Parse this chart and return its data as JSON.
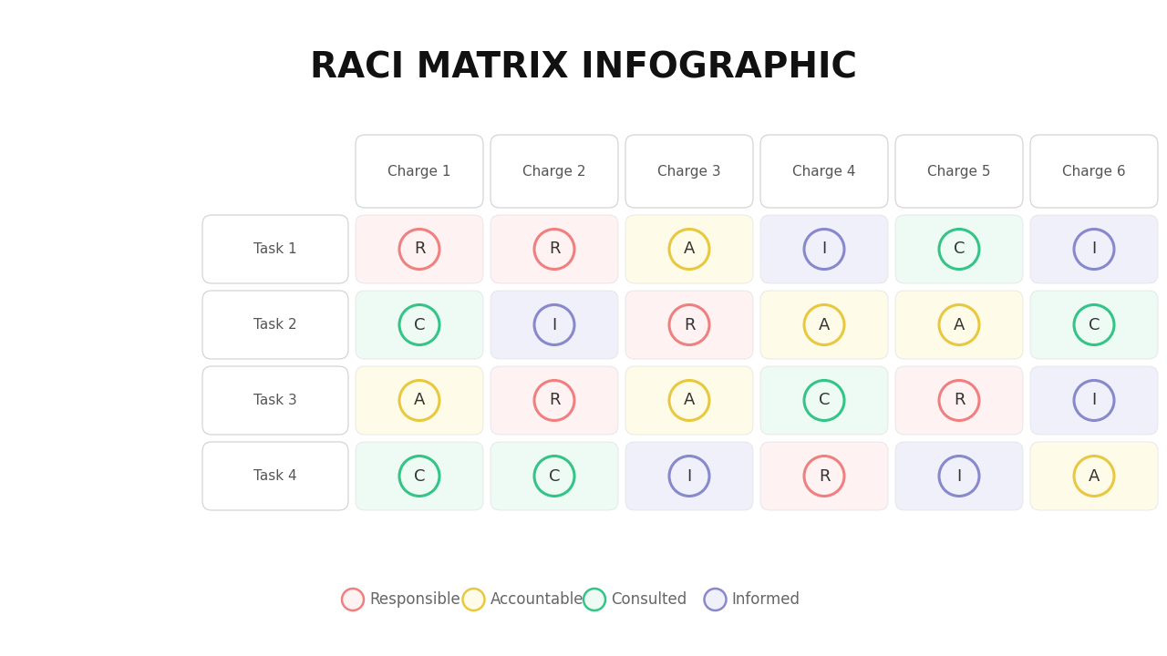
{
  "title": "RACI MATRIX INFOGRAPHIC",
  "background_color": "#ffffff",
  "charges": [
    "Charge 1",
    "Charge 2",
    "Charge 3",
    "Charge 4",
    "Charge 5",
    "Charge 6"
  ],
  "tasks": [
    "Task 1",
    "Task 2",
    "Task 3",
    "Task 4"
  ],
  "matrix": [
    [
      "R",
      "R",
      "A",
      "I",
      "C",
      "I"
    ],
    [
      "C",
      "I",
      "R",
      "A",
      "A",
      "C"
    ],
    [
      "A",
      "R",
      "A",
      "C",
      "R",
      "I"
    ],
    [
      "C",
      "C",
      "I",
      "R",
      "I",
      "A"
    ]
  ],
  "raci_colors": {
    "R": {
      "circle": "#F08080",
      "bg": "#FEF2F2"
    },
    "A": {
      "circle": "#E8C840",
      "bg": "#FEFCE8"
    },
    "C": {
      "circle": "#34C488",
      "bg": "#EDFBF4"
    },
    "I": {
      "circle": "#8888CC",
      "bg": "#F0F0FA"
    }
  },
  "legend": [
    {
      "label": "Responsible",
      "color": "#F08080",
      "bg": "#FEF2F2"
    },
    {
      "label": "Accountable",
      "color": "#E8C840",
      "bg": "#FEFCE8"
    },
    {
      "label": "Consulted",
      "color": "#34C488",
      "bg": "#EDFBF4"
    },
    {
      "label": "Informed",
      "color": "#8888CC",
      "bg": "#F0F0FA"
    }
  ],
  "title_fontsize": 28,
  "legend_fontsize": 12,
  "task_fontsize": 11,
  "charge_fontsize": 11,
  "cell_letter_fontsize": 13
}
